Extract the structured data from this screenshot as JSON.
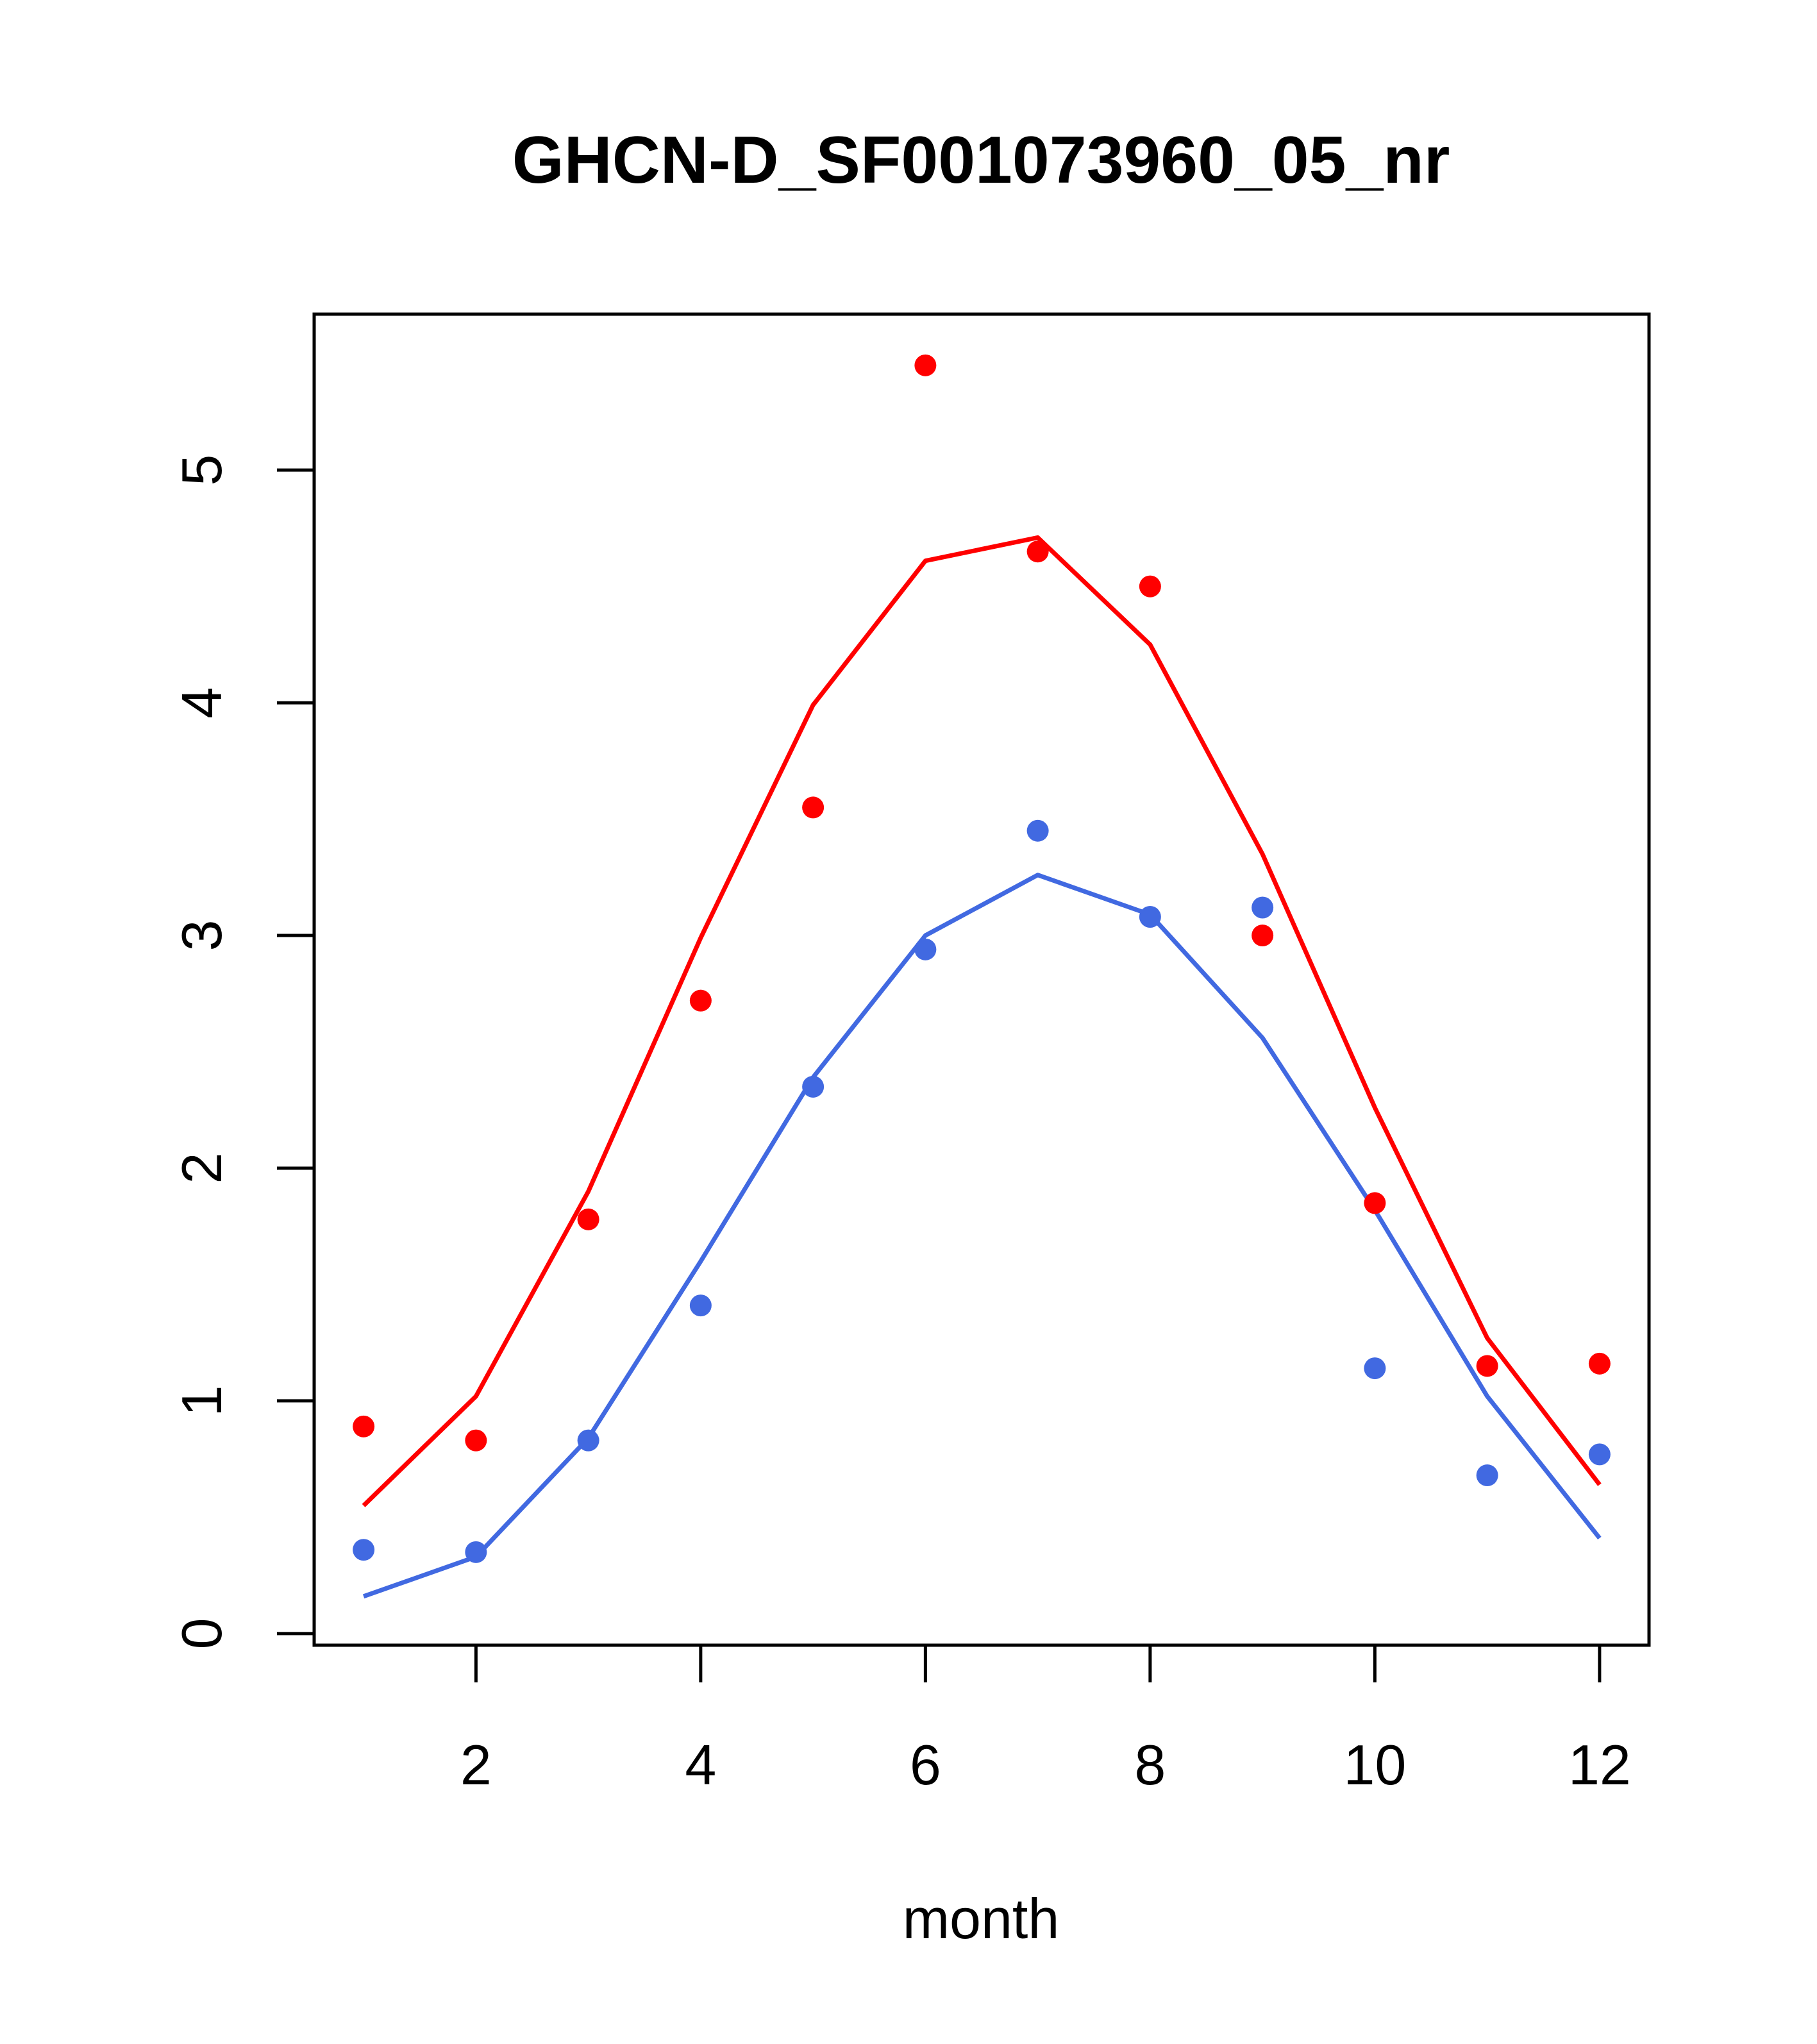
{
  "chart_data": {
    "type": "line",
    "title": "GHCN-D_SF001073960_05_nr",
    "xlabel": "month",
    "ylabel": "",
    "xlim": [
      0.56,
      12.44
    ],
    "ylim": [
      -0.05,
      5.67
    ],
    "x_ticks": [
      2,
      4,
      6,
      8,
      10,
      12
    ],
    "y_ticks": [
      0,
      1,
      2,
      3,
      4,
      5
    ],
    "grid": false,
    "legend": "none",
    "x": [
      1,
      2,
      3,
      4,
      5,
      6,
      7,
      8,
      9,
      10,
      11,
      12
    ],
    "series": [
      {
        "color": "#ff0000",
        "points": [
          0.89,
          0.83,
          1.78,
          2.72,
          3.55,
          5.45,
          4.65,
          4.5,
          3.0,
          1.85,
          1.15,
          1.16
        ],
        "line": [
          0.55,
          1.02,
          1.9,
          2.99,
          3.99,
          4.61,
          4.71,
          4.25,
          3.35,
          2.26,
          1.27,
          0.64
        ]
      },
      {
        "color": "#4169e1",
        "points": [
          0.36,
          0.35,
          0.83,
          1.41,
          2.35,
          2.94,
          3.45,
          3.08,
          3.12,
          1.14,
          0.68,
          0.77
        ],
        "line": [
          0.16,
          0.33,
          0.84,
          1.6,
          2.39,
          3.0,
          3.26,
          3.09,
          2.56,
          1.82,
          1.02,
          0.41
        ]
      }
    ]
  }
}
